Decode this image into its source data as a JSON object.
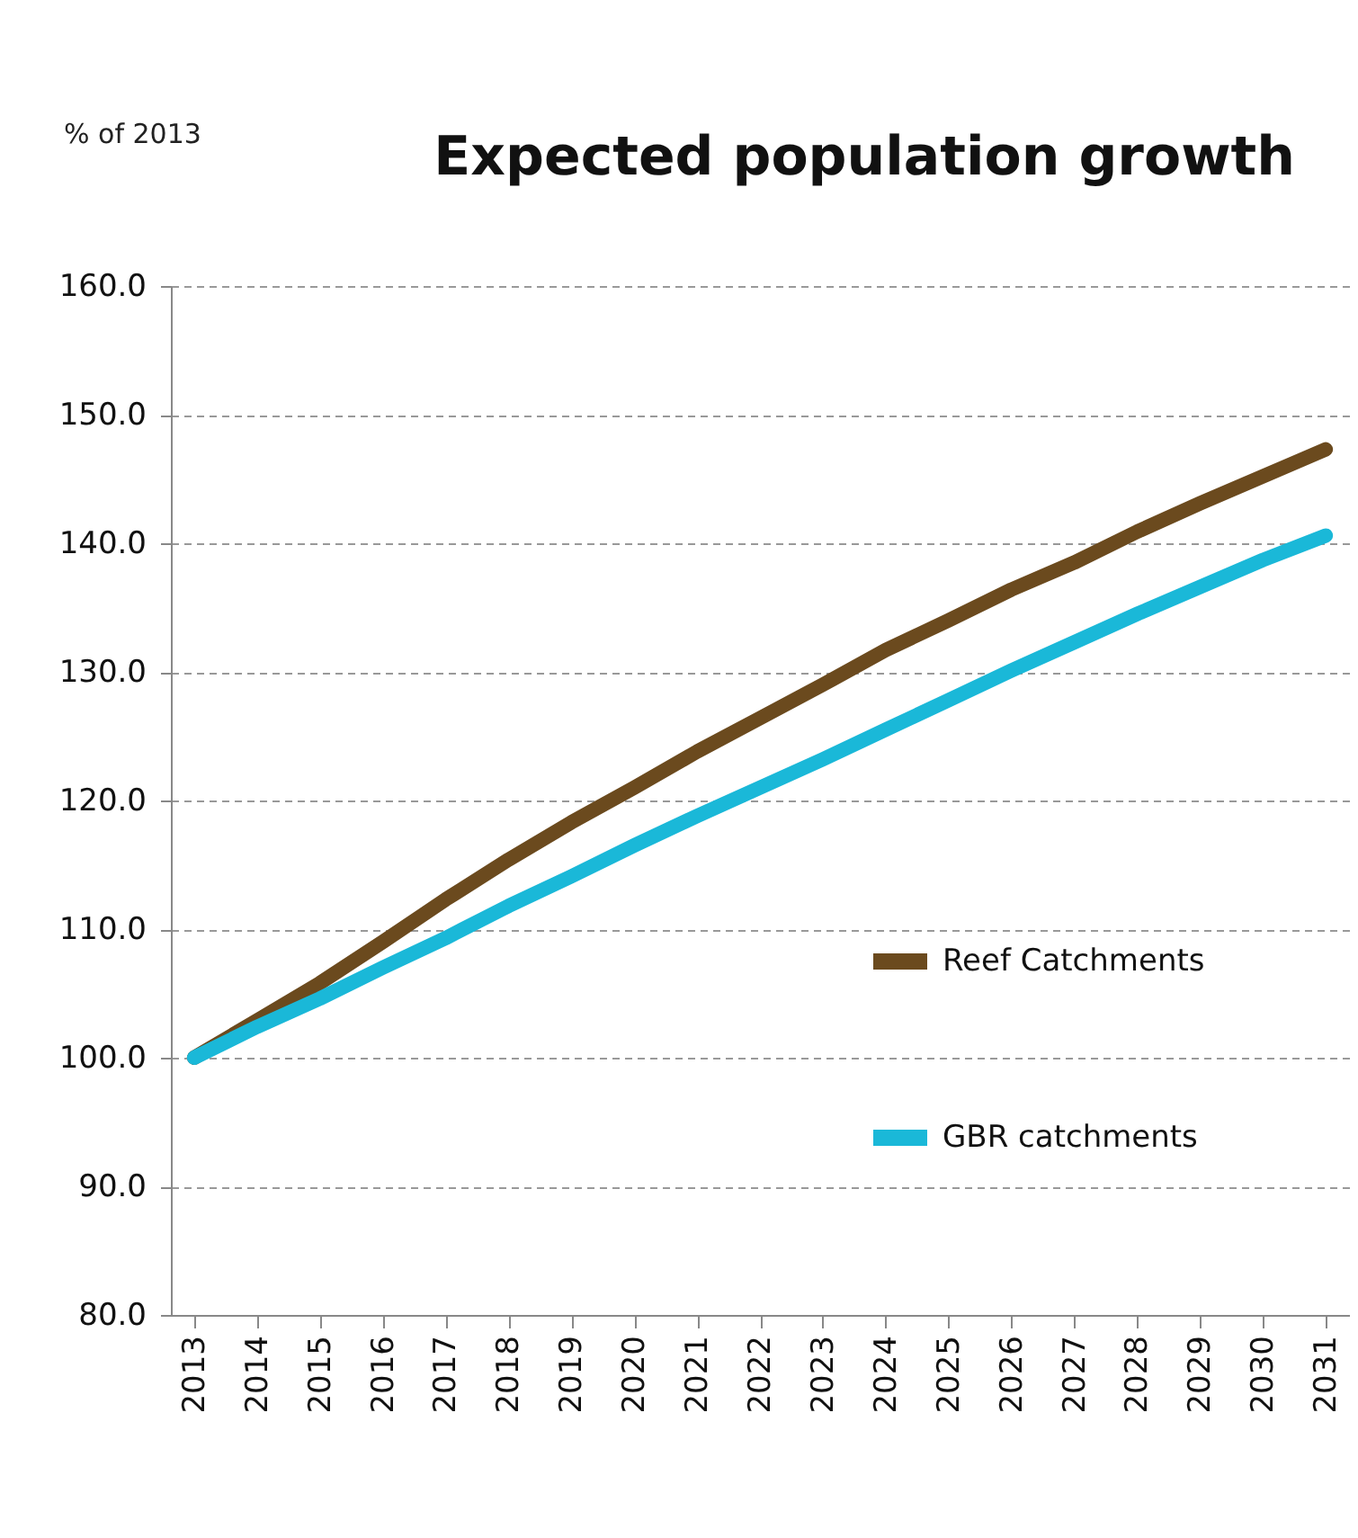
{
  "chart_data": {
    "type": "line",
    "title": "Expected population growth",
    "ylabel": "% of 2013",
    "categories": [
      "2013",
      "2014",
      "2015",
      "2016",
      "2017",
      "2018",
      "2019",
      "2020",
      "2021",
      "2022",
      "2023",
      "2024",
      "2025",
      "2026",
      "2027",
      "2028",
      "2029",
      "2030",
      "2031"
    ],
    "series": [
      {
        "name": "Reef Catchments",
        "color": "#6b4a1e",
        "values": [
          100,
          102.9,
          105.8,
          109.0,
          112.3,
          115.4,
          118.3,
          121.0,
          123.8,
          126.4,
          129.0,
          131.7,
          134.0,
          136.4,
          138.5,
          140.9,
          143.1,
          145.2,
          147.3
        ]
      },
      {
        "name": "GBR catchments",
        "color": "#1ab8d8",
        "values": [
          100,
          102.4,
          104.6,
          107.0,
          109.3,
          111.8,
          114.1,
          116.5,
          118.8,
          121.0,
          123.2,
          125.5,
          127.8,
          130.1,
          132.3,
          134.5,
          136.6,
          138.7,
          140.6
        ]
      }
    ],
    "ylim": [
      80,
      160
    ],
    "yticks": [
      {
        "value": 80,
        "label": "80.0"
      },
      {
        "value": 90,
        "label": "90.0"
      },
      {
        "value": 100,
        "label": "100.0"
      },
      {
        "value": 110,
        "label": "110.0"
      },
      {
        "value": 120,
        "label": "120.0"
      },
      {
        "value": 130,
        "label": "130.0"
      },
      {
        "value": 140,
        "label": "140.0"
      },
      {
        "value": 150,
        "label": "150.0"
      },
      {
        "value": 160,
        "label": "160.0"
      }
    ],
    "grid": "y",
    "legend": "bottom right",
    "line_style": "solid"
  }
}
